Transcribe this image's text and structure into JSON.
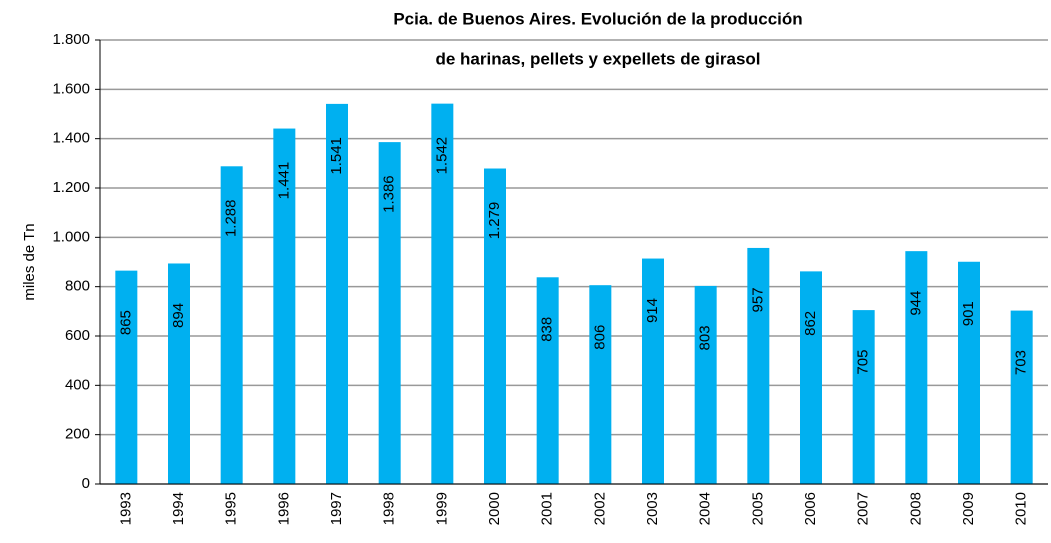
{
  "chart_data": {
    "type": "bar",
    "title": [
      "Pcia. de Buenos Aires. Evolución de la producción",
      "de harinas, pellets y expellets de girasol"
    ],
    "y_label": "miles de Tn",
    "categories": [
      "1993",
      "1994",
      "1995",
      "1996",
      "1997",
      "1998",
      "1999",
      "2000",
      "2001",
      "2002",
      "2003",
      "2004",
      "2005",
      "2006",
      "2007",
      "2008",
      "2009",
      "2010"
    ],
    "values": [
      865,
      894,
      1288,
      1441,
      1541,
      1386,
      1542,
      1279,
      838,
      806,
      914,
      803,
      957,
      862,
      705,
      944,
      901,
      703
    ],
    "value_labels": [
      "865",
      "894",
      "1.288",
      "1.441",
      "1.541",
      "1.386",
      "1.542",
      "1.279",
      "838",
      "806",
      "914",
      "803",
      "957",
      "862",
      "705",
      "944",
      "901",
      "703"
    ],
    "color": "#00b0f0",
    "ylim": [
      0,
      1800
    ],
    "yticks": [
      0,
      200,
      400,
      600,
      800,
      {
        "value": 1000,
        "label": "1.000"
      },
      {
        "value": 1200,
        "label": "1.200"
      },
      {
        "value": 1400,
        "label": "1.400"
      },
      {
        "value": 1600,
        "label": "1.600"
      },
      {
        "value": 1800,
        "label": "1.800"
      }
    ],
    "grid": true
  }
}
